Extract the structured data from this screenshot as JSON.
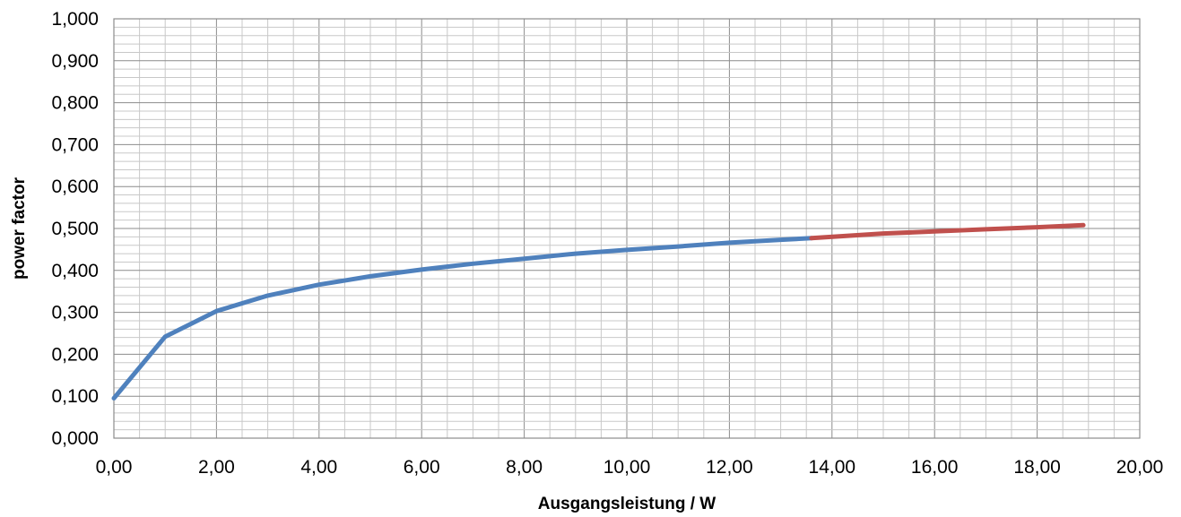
{
  "chart_data": {
    "type": "line",
    "xlabel": "Ausgangsleistung / W",
    "ylabel": "power factor",
    "xlim": [
      0,
      20
    ],
    "ylim": [
      0,
      1
    ],
    "x_ticks": [
      "0,00",
      "2,00",
      "4,00",
      "6,00",
      "8,00",
      "10,00",
      "12,00",
      "14,00",
      "16,00",
      "18,00",
      "20,00"
    ],
    "y_ticks": [
      "0,000",
      "0,100",
      "0,200",
      "0,300",
      "0,400",
      "0,500",
      "0,600",
      "0,700",
      "0,800",
      "0,900",
      "1,000"
    ],
    "grid": true,
    "legend": "none",
    "series": [
      {
        "color": "#4f81bd",
        "x": [
          0.0,
          1.0,
          2.0,
          3.0,
          4.0,
          5.0,
          6.0,
          7.0,
          8.0,
          9.0,
          10.0,
          11.0,
          12.0,
          13.0,
          13.6
        ],
        "y": [
          0.095,
          0.242,
          0.303,
          0.34,
          0.366,
          0.386,
          0.402,
          0.416,
          0.428,
          0.44,
          0.449,
          0.457,
          0.466,
          0.473,
          0.477
        ]
      },
      {
        "color": "#c0504d",
        "x": [
          13.6,
          15.0,
          16.0,
          17.0,
          18.0,
          18.9
        ],
        "y": [
          0.477,
          0.488,
          0.493,
          0.498,
          0.503,
          0.508
        ]
      }
    ]
  }
}
